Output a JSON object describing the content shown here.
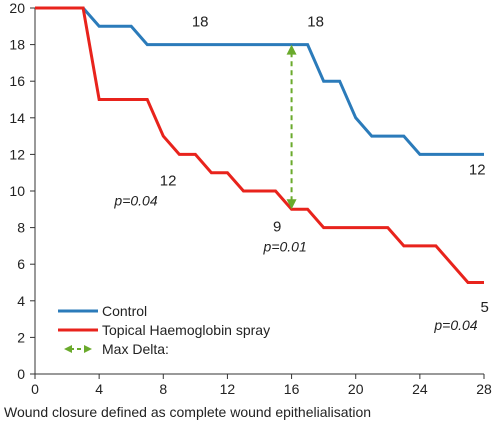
{
  "chart_data": {
    "type": "line",
    "title": "",
    "xlabel": "Wound closure defined as complete wound epithelialisation",
    "ylabel": "",
    "xlim": [
      0,
      28
    ],
    "ylim": [
      0,
      20
    ],
    "x_ticks": [
      0,
      4,
      8,
      12,
      16,
      20,
      24,
      28
    ],
    "y_ticks": [
      0,
      2,
      4,
      6,
      8,
      10,
      12,
      14,
      16,
      18,
      20
    ],
    "grid": false,
    "legend_position": "bottom-left",
    "series": [
      {
        "name": "Control",
        "color": "#2b7bba",
        "style": "step",
        "x": [
          0,
          3,
          4,
          6,
          7,
          17,
          18,
          19,
          20,
          21,
          23,
          24,
          28
        ],
        "y": [
          20,
          20,
          19,
          19,
          18,
          18,
          16,
          16,
          14,
          13,
          13,
          12,
          12
        ]
      },
      {
        "name": "Topical Haemoglobin spray",
        "color": "#e8231c",
        "style": "step",
        "x": [
          0,
          3,
          4,
          7,
          8,
          9,
          10,
          11,
          12,
          13,
          15,
          16,
          17,
          18,
          22,
          23,
          25,
          27,
          28
        ],
        "y": [
          20,
          20,
          15,
          15,
          13,
          12,
          12,
          11,
          11,
          10,
          10,
          9,
          9,
          8,
          8,
          7,
          7,
          5,
          5
        ]
      }
    ],
    "max_delta": {
      "name": "Max Delta:",
      "color": "#6aaa2c",
      "x": 16,
      "y_from": 9,
      "y_to": 18
    },
    "annotations": [
      {
        "text": "18",
        "x": 10.3,
        "y": 19.0,
        "style": "value"
      },
      {
        "text": "18",
        "x": 17.5,
        "y": 19.0,
        "style": "value"
      },
      {
        "text": "12",
        "x": 8.3,
        "y": 10.3,
        "style": "value"
      },
      {
        "text": "p=0.04",
        "x": 6.3,
        "y": 9.2,
        "style": "p"
      },
      {
        "text": "9",
        "x": 15.1,
        "y": 7.8,
        "style": "value"
      },
      {
        "text": "p=0.01",
        "x": 15.6,
        "y": 6.7,
        "style": "p"
      },
      {
        "text": "12",
        "x": 28.1,
        "y": 10.9,
        "style": "value"
      },
      {
        "text": "5",
        "x": 28.3,
        "y": 3.4,
        "style": "value"
      },
      {
        "text": "p=0.04",
        "x": 27.6,
        "y": 2.4,
        "style": "p"
      }
    ]
  }
}
